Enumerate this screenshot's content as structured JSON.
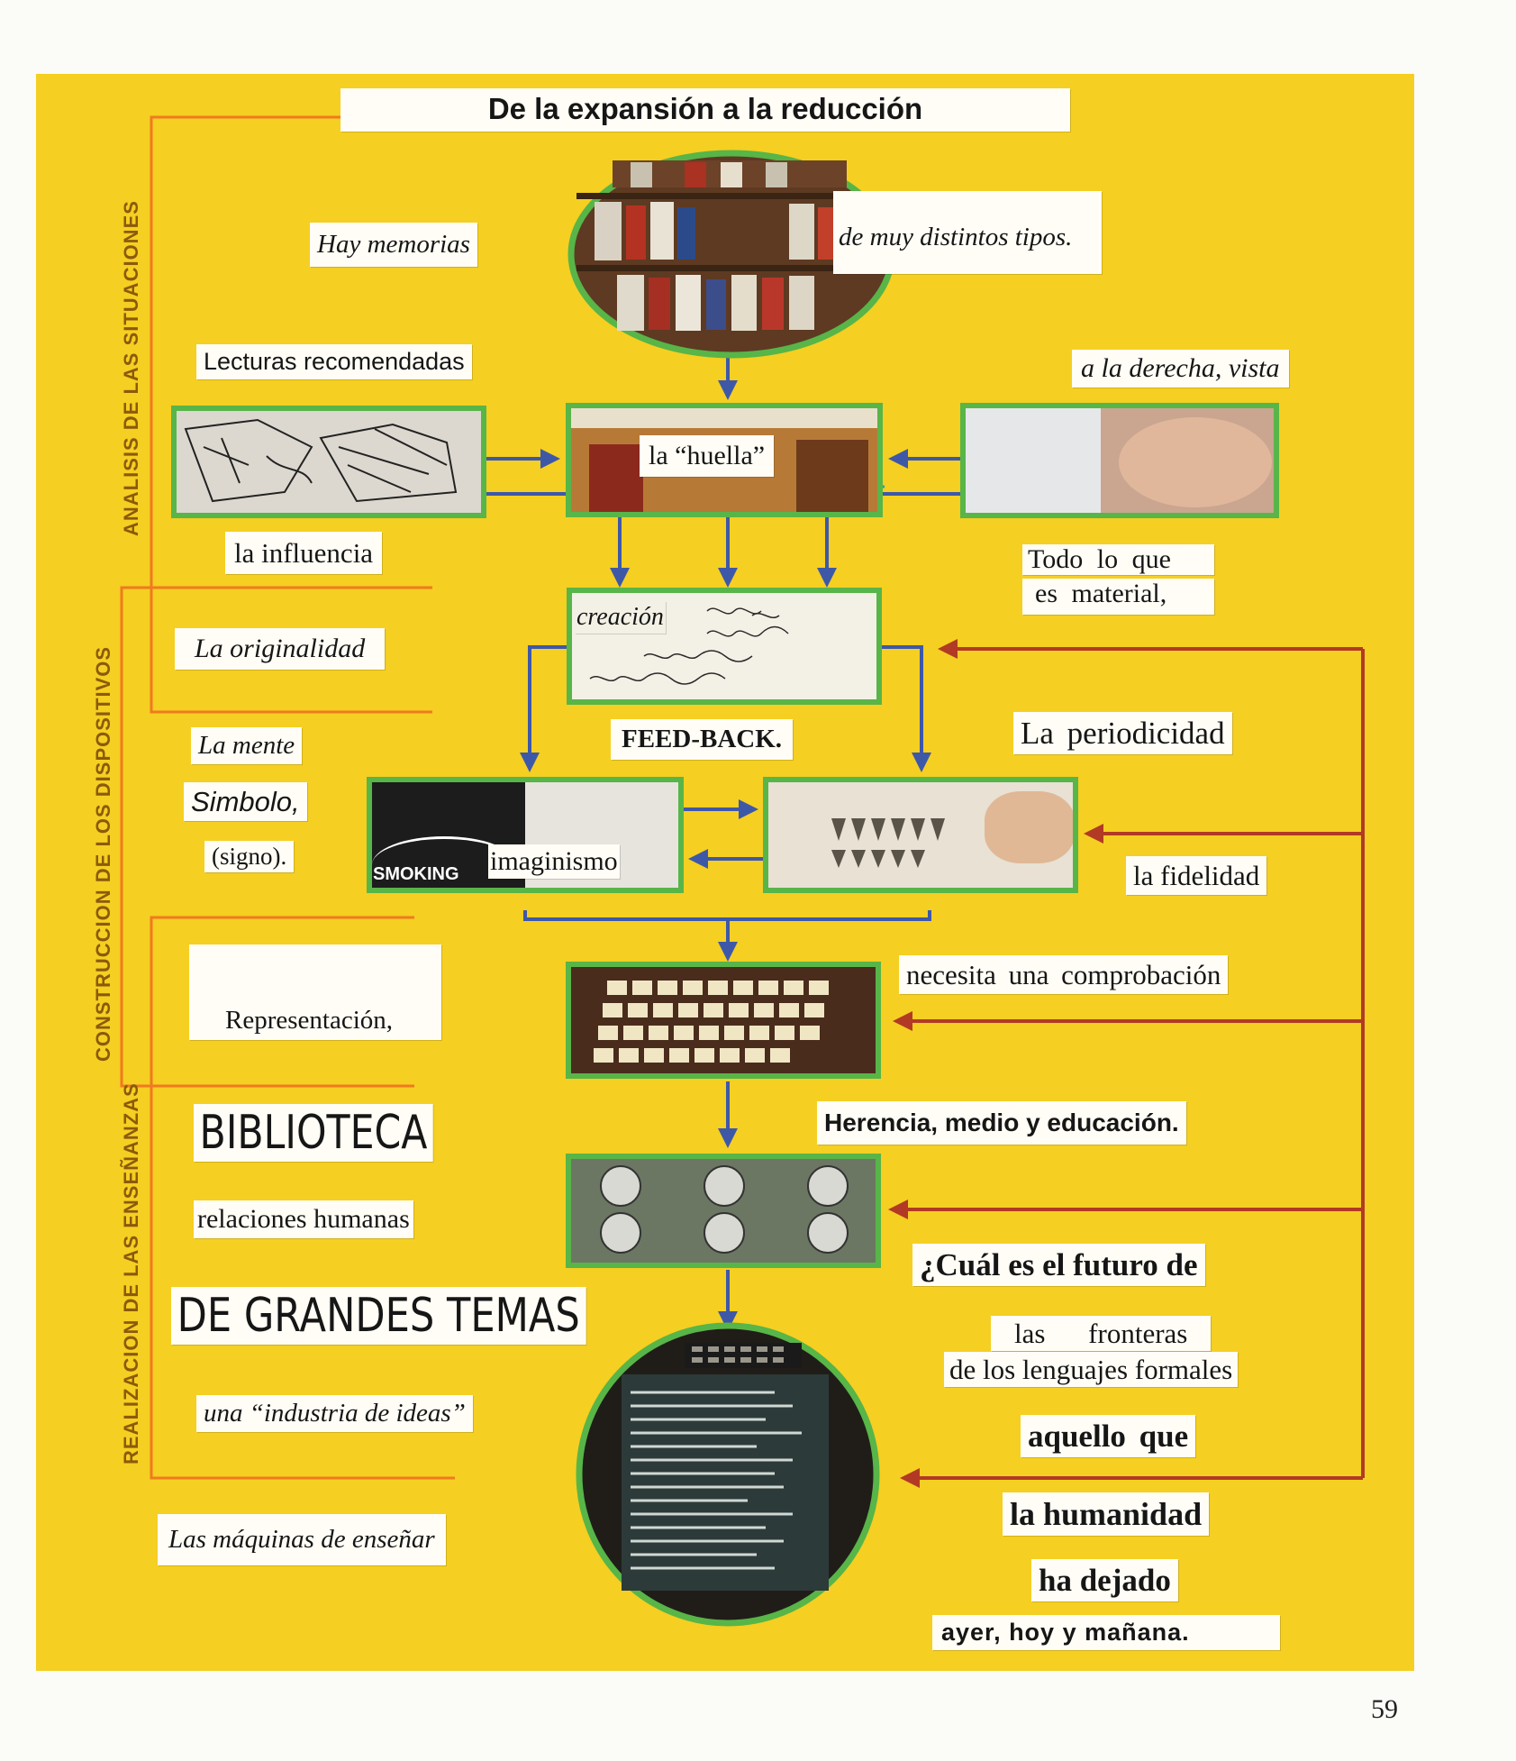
{
  "page_number": "59",
  "colors": {
    "background": "#f5cf22",
    "frame": "#58b548",
    "flow_arrow": "#3e58a8",
    "feedback": "#b23a24",
    "section_rule": "#f07a20",
    "label_bg": "#fffdf6"
  },
  "side_sections": [
    {
      "label": "ANALISIS DE LAS SITUACIONES"
    },
    {
      "label": "CONSTRUCCION DE LOS DISPOSITIVOS"
    },
    {
      "label": "REALIZACION DE LAS ENSEÑANZAS"
    }
  ],
  "title": "De la expansión a la reducción",
  "left_labels": {
    "memorias": "Hay memorias",
    "lecturas": "Lecturas recomendadas",
    "influencia": "la influencia",
    "originalidad": "La originalidad",
    "mente": "La mente",
    "simbolo": "Simbolo,",
    "signo": "(signo).",
    "representacion": "Representación,",
    "biblioteca": "BIBLIOTECA",
    "relaciones": "relaciones humanas",
    "grandes_temas": "DE GRANDES TEMAS",
    "industria": "una “industria de ideas”",
    "maquinas": "Las máquinas de enseñar"
  },
  "center_labels": {
    "huella": "la “huella”",
    "creacion": "creación",
    "feedback": "FEED-BACK.",
    "imaginismo": "imaginismo",
    "smoking": "SMOKING"
  },
  "right_labels": {
    "tipos": "de muy distintos tipos.",
    "derecha": "a la derecha, vista",
    "todo_line1": "Todo lo que",
    "todo_line2": "es material,",
    "periodicidad": "La periodicidad",
    "fidelidad": "la fidelidad",
    "comprobacion": "necesita una comprobación",
    "herencia": "Herencia, medio y educación.",
    "futuro": "¿Cuál es el futuro de",
    "fronteras": "las fronteras",
    "lenguajes": "de los lenguajes formales",
    "aquello": "aquello que",
    "humanidad": "la humanidad",
    "dejado": "ha dejado",
    "ayer": "ayer, hoy y mañana."
  }
}
